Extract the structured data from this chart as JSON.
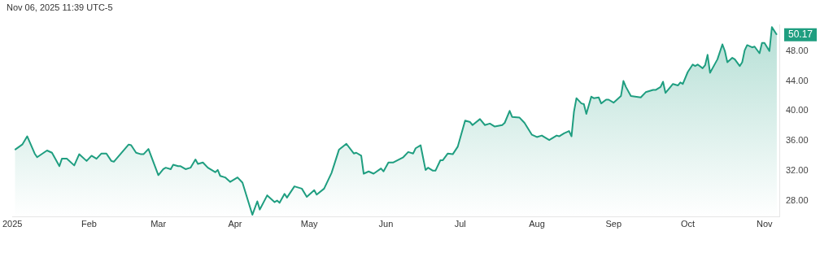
{
  "chart_data": {
    "type": "area",
    "annotations": [
      "Nov 06, 2025 11:39 UTC-5",
      {
        "text": "50.17",
        "x": "2025-11-06",
        "y": 50.17
      }
    ],
    "x": [
      "2025-01-02",
      "2025-01-05",
      "2025-01-07",
      "2025-01-10",
      "2025-01-11",
      "2025-01-15",
      "2025-01-17",
      "2025-01-20",
      "2025-01-21",
      "2025-01-23",
      "2025-01-26",
      "2025-01-28",
      "2025-01-31",
      "2025-02-02",
      "2025-02-04",
      "2025-02-06",
      "2025-02-08",
      "2025-02-10",
      "2025-02-11",
      "2025-02-17",
      "2025-02-18",
      "2025-02-20",
      "2025-02-22",
      "2025-02-23",
      "2025-02-25",
      "2025-03-01",
      "2025-03-03",
      "2025-03-04",
      "2025-03-06",
      "2025-03-07",
      "2025-03-09",
      "2025-03-10",
      "2025-03-12",
      "2025-03-14",
      "2025-03-16",
      "2025-03-17",
      "2025-03-19",
      "2025-03-21",
      "2025-03-24",
      "2025-03-25",
      "2025-03-26",
      "2025-03-28",
      "2025-03-30",
      "2025-04-02",
      "2025-04-04",
      "2025-04-08",
      "2025-04-10",
      "2025-04-11",
      "2025-04-14",
      "2025-04-17",
      "2025-04-18",
      "2025-04-19",
      "2025-04-21",
      "2025-04-22",
      "2025-04-25",
      "2025-04-28",
      "2025-04-30",
      "2025-05-03",
      "2025-05-04",
      "2025-05-07",
      "2025-05-10",
      "2025-05-13",
      "2025-05-16",
      "2025-05-19",
      "2025-05-20",
      "2025-05-22",
      "2025-05-23",
      "2025-05-25",
      "2025-05-27",
      "2025-05-30",
      "2025-05-31",
      "2025-06-02",
      "2025-06-04",
      "2025-06-08",
      "2025-06-10",
      "2025-06-12",
      "2025-06-13",
      "2025-06-15",
      "2025-06-17",
      "2025-06-18",
      "2025-06-20",
      "2025-06-21",
      "2025-06-23",
      "2025-06-24",
      "2025-06-26",
      "2025-06-28",
      "2025-06-30",
      "2025-07-03",
      "2025-07-05",
      "2025-07-06",
      "2025-07-09",
      "2025-07-11",
      "2025-07-13",
      "2025-07-15",
      "2025-07-18",
      "2025-07-19",
      "2025-07-21",
      "2025-07-22",
      "2025-07-25",
      "2025-07-27",
      "2025-07-30",
      "2025-08-01",
      "2025-08-03",
      "2025-08-06",
      "2025-08-09",
      "2025-08-10",
      "2025-08-12",
      "2025-08-14",
      "2025-08-15",
      "2025-08-16",
      "2025-08-17",
      "2025-08-19",
      "2025-08-20",
      "2025-08-21",
      "2025-08-23",
      "2025-08-24",
      "2025-08-26",
      "2025-08-27",
      "2025-08-29",
      "2025-08-30",
      "2025-09-01",
      "2025-09-04",
      "2025-09-05",
      "2025-09-06",
      "2025-09-08",
      "2025-09-12",
      "2025-09-14",
      "2025-09-17",
      "2025-09-18",
      "2025-09-20",
      "2025-09-21",
      "2025-09-22",
      "2025-09-24",
      "2025-09-25",
      "2025-09-27",
      "2025-09-28",
      "2025-09-29",
      "2025-10-01",
      "2025-10-03",
      "2025-10-04",
      "2025-10-05",
      "2025-10-07",
      "2025-10-08",
      "2025-10-09",
      "2025-10-10",
      "2025-10-12",
      "2025-10-13",
      "2025-10-15",
      "2025-10-16",
      "2025-10-17",
      "2025-10-19",
      "2025-10-20",
      "2025-10-22",
      "2025-10-23",
      "2025-10-24",
      "2025-10-25",
      "2025-10-27",
      "2025-10-28",
      "2025-10-30",
      "2025-10-31",
      "2025-11-01",
      "2025-11-03",
      "2025-11-04",
      "2025-11-06"
    ],
    "values": [
      34.8,
      35.5,
      36.6,
      34.3,
      33.8,
      34.7,
      34.4,
      32.6,
      33.6,
      33.6,
      32.7,
      34.2,
      33.3,
      34.0,
      33.6,
      34.3,
      34.3,
      33.3,
      33.2,
      35.5,
      35.4,
      34.4,
      34.2,
      34.2,
      34.9,
      31.4,
      32.2,
      32.4,
      32.2,
      32.8,
      32.6,
      32.6,
      32.2,
      32.4,
      33.5,
      32.9,
      33.1,
      32.4,
      31.8,
      32.1,
      31.3,
      31.1,
      30.5,
      31.1,
      30.4,
      26.1,
      27.9,
      26.8,
      28.7,
      27.8,
      28.0,
      27.7,
      28.9,
      28.4,
      29.9,
      29.6,
      28.5,
      29.4,
      28.8,
      29.6,
      31.7,
      34.8,
      35.6,
      34.3,
      34.4,
      34.0,
      31.6,
      31.9,
      31.6,
      32.3,
      31.9,
      33.1,
      33.1,
      33.8,
      34.5,
      34.3,
      35.0,
      35.4,
      32.1,
      32.4,
      32.0,
      32.0,
      33.4,
      33.4,
      34.3,
      34.2,
      35.2,
      38.7,
      38.5,
      38.1,
      38.9,
      38.1,
      38.3,
      37.9,
      38.1,
      38.4,
      40.0,
      39.2,
      39.1,
      38.4,
      36.8,
      36.5,
      36.7,
      36.1,
      36.7,
      36.6,
      37.0,
      37.3,
      36.6,
      39.9,
      41.7,
      41.0,
      40.9,
      39.6,
      41.9,
      41.7,
      41.8,
      41.0,
      41.5,
      41.5,
      41.1,
      42.0,
      44.0,
      43.2,
      42.0,
      41.8,
      42.5,
      42.8,
      42.8,
      43.2,
      43.9,
      42.4,
      43.2,
      43.6,
      43.4,
      43.8,
      43.6,
      45.2,
      46.2,
      46.0,
      46.2,
      45.7,
      46.1,
      47.5,
      45.1,
      46.3,
      46.9,
      48.9,
      48.0,
      46.5,
      47.1,
      46.9,
      46.0,
      46.5,
      48.1,
      48.8,
      48.5,
      48.6,
      47.7,
      49.1,
      49.1,
      48.0,
      51.2,
      50.17
    ],
    "color": "#1f9e80",
    "xlim": [
      "2025-01-01",
      "2025-11-07"
    ],
    "xticks": [
      {
        "value": "2025-01-01",
        "label": "2025"
      },
      {
        "value": "2025-02-01",
        "label": "Feb"
      },
      {
        "value": "2025-03-01",
        "label": "Mar"
      },
      {
        "value": "2025-04-01",
        "label": "Apr"
      },
      {
        "value": "2025-05-01",
        "label": "May"
      },
      {
        "value": "2025-06-01",
        "label": "Jun"
      },
      {
        "value": "2025-07-01",
        "label": "Jul"
      },
      {
        "value": "2025-08-01",
        "label": "Aug"
      },
      {
        "value": "2025-09-01",
        "label": "Sep"
      },
      {
        "value": "2025-10-01",
        "label": "Oct"
      },
      {
        "value": "2025-11-01",
        "label": "Nov"
      }
    ],
    "ylim": [
      25.8,
      51.5
    ],
    "yticks": [
      {
        "value": 28,
        "label": "28.00"
      },
      {
        "value": 32,
        "label": "32.00"
      },
      {
        "value": 36,
        "label": "36.00"
      },
      {
        "value": 40,
        "label": "40.00"
      },
      {
        "value": 44,
        "label": "44.00"
      },
      {
        "value": 48,
        "label": "48.00"
      }
    ],
    "grid": false,
    "legend": false,
    "marker": "none",
    "line_style": "solid"
  }
}
